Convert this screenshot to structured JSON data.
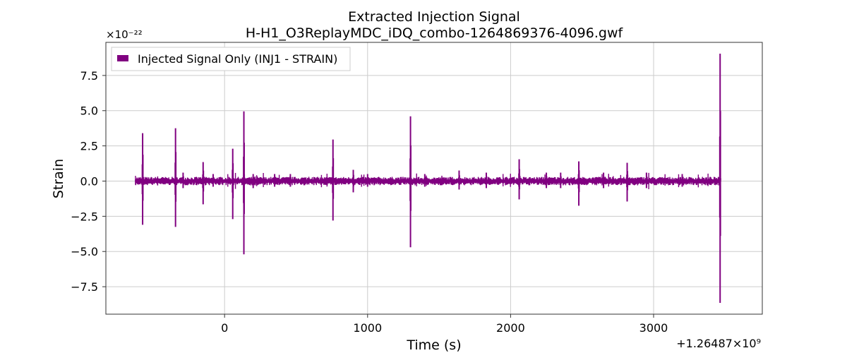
{
  "chart_data": {
    "type": "line",
    "title": "Extracted Injection Signal",
    "subtitle": "H-H1_O3ReplayMDC_iDQ_combo-1264869376-4096.gwf",
    "xlabel": "Time (s)",
    "ylabel": "Strain",
    "y_scale_label": "×10⁻²²",
    "x_offset_label": "+1.26487×10⁹",
    "xlim": [
      -830,
      3760
    ],
    "ylim": [
      -9.45,
      9.85
    ],
    "xticks": [
      0,
      1000,
      2000,
      3000
    ],
    "xtick_labels": [
      "0",
      "1000",
      "2000",
      "3000"
    ],
    "yticks": [
      -7.5,
      -5.0,
      -2.5,
      0.0,
      2.5,
      5.0,
      7.5
    ],
    "ytick_labels": [
      "−7.5",
      "−5.0",
      "−2.5",
      "0.0",
      "2.5",
      "5.0",
      "7.5"
    ],
    "grid": true,
    "legend_position": "top-left",
    "color": "#800080",
    "series": [
      {
        "name": "Injected Signal Only (INJ1 - STRAIN)",
        "x_range": [
          -624,
          3470
        ],
        "baseline_noise": 0.3,
        "spikes": [
          {
            "x": -573,
            "max": 3.4,
            "min": -3.1
          },
          {
            "x": -343,
            "max": 3.75,
            "min": -3.25
          },
          {
            "x": -290,
            "max": 0.6,
            "min": -0.5
          },
          {
            "x": -150,
            "max": 1.35,
            "min": -1.65
          },
          {
            "x": -80,
            "max": 0.5,
            "min": -0.4
          },
          {
            "x": 57,
            "max": 2.3,
            "min": -2.7
          },
          {
            "x": 135,
            "max": 4.95,
            "min": -5.2
          },
          {
            "x": 200,
            "max": 0.5,
            "min": -0.5
          },
          {
            "x": 350,
            "max": 0.5,
            "min": -0.4
          },
          {
            "x": 460,
            "max": 0.5,
            "min": -0.4
          },
          {
            "x": 758,
            "max": 2.95,
            "min": -2.8
          },
          {
            "x": 900,
            "max": 0.8,
            "min": -0.8
          },
          {
            "x": 1000,
            "max": 0.5,
            "min": -0.4
          },
          {
            "x": 1300,
            "max": 4.6,
            "min": -4.7
          },
          {
            "x": 1400,
            "max": 0.5,
            "min": -0.4
          },
          {
            "x": 1640,
            "max": 0.75,
            "min": -0.6
          },
          {
            "x": 1830,
            "max": 0.6,
            "min": -0.5
          },
          {
            "x": 2060,
            "max": 1.55,
            "min": -1.3
          },
          {
            "x": 2250,
            "max": 0.6,
            "min": -0.5
          },
          {
            "x": 2350,
            "max": 0.6,
            "min": -0.5
          },
          {
            "x": 2477,
            "max": 1.4,
            "min": -1.75
          },
          {
            "x": 2650,
            "max": 0.6,
            "min": -0.5
          },
          {
            "x": 2815,
            "max": 1.3,
            "min": -1.45
          },
          {
            "x": 2950,
            "max": 0.6,
            "min": -0.5
          },
          {
            "x": 3200,
            "max": 0.5,
            "min": -0.4
          },
          {
            "x": 3465,
            "max": 9.05,
            "min": -8.65
          }
        ]
      }
    ]
  }
}
